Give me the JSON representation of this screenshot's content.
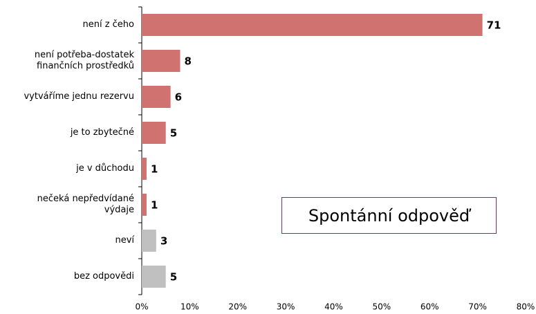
{
  "chart_data": {
    "type": "hbar",
    "categories": [
      "není z čeho",
      "není potřeba-dostatek\nfinančních prostředků",
      "vytváříme jednu rezervu",
      "je to zbytečné",
      "je v důchodu",
      "nečeká nepředvídané\nvýdaje",
      "neví",
      "bez odpovědi"
    ],
    "values": [
      71,
      8,
      6,
      5,
      1,
      1,
      3,
      5
    ],
    "colors": [
      "#d07370",
      "#d07370",
      "#d07370",
      "#d07370",
      "#d07370",
      "#d07370",
      "#c0c0c0",
      "#c0c0c0"
    ],
    "xlim": [
      0,
      80
    ],
    "xticks": [
      {
        "value": 0,
        "label": "0%"
      },
      {
        "value": 10,
        "label": "10%"
      },
      {
        "value": 20,
        "label": "20%"
      },
      {
        "value": 30,
        "label": "30%"
      },
      {
        "value": 40,
        "label": "40%"
      },
      {
        "value": 50,
        "label": "50%"
      },
      {
        "value": 60,
        "label": "60%"
      },
      {
        "value": 70,
        "label": "70%"
      },
      {
        "value": 80,
        "label": "80%"
      }
    ],
    "annotation": "Spontánní odpověď"
  }
}
